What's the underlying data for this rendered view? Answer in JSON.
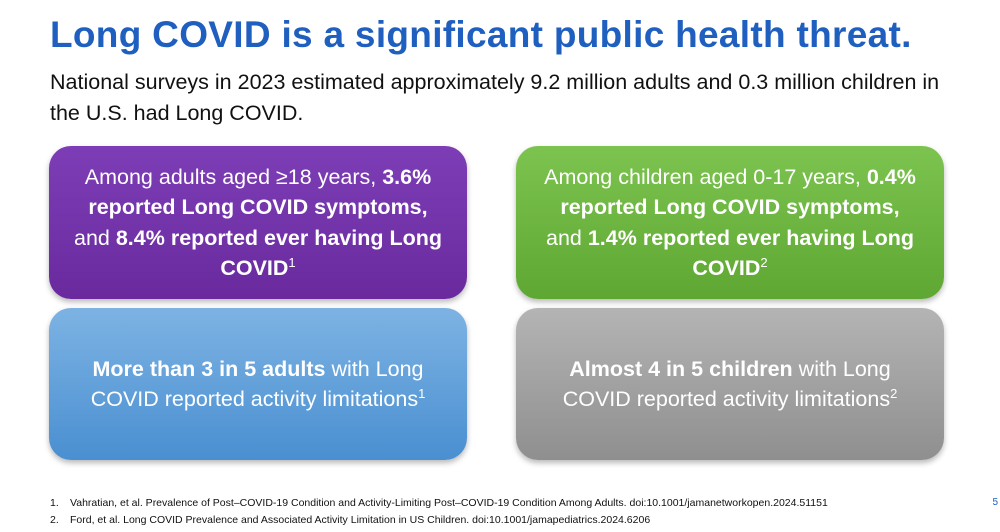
{
  "title": "Long COVID is a significant public health threat.",
  "subtitle": "National surveys in 2023 estimated approximately 9.2 million adults and 0.3 million children in the U.S. had Long COVID.",
  "cards": {
    "adults_prevalence": {
      "t1": "Among adults aged ≥18 years, ",
      "b1": "3.6% reported Long COVID symptoms,",
      "t2": " and ",
      "b2": "8.4% reported ever having Long COVID",
      "sup": "1",
      "color": "#6a2a9e"
    },
    "children_prevalence": {
      "t1": "Among children aged 0-17 years, ",
      "b1": "0.4% reported Long COVID symptoms,",
      "t2": " and ",
      "b2": "1.4% reported ever having Long COVID",
      "sup": "2",
      "color": "#5fa733"
    },
    "adults_limitations": {
      "b1": "More than 3 in 5 adults",
      "t1": " with Long COVID reported activity limitations",
      "sup": "1",
      "color": "#4a8fd1"
    },
    "children_limitations": {
      "b1": "Almost 4 in 5 children",
      "t1": " with Long COVID reported activity limitations",
      "sup": "2",
      "color": "#8f8f8f"
    }
  },
  "references": [
    {
      "num": "1.",
      "text": "Vahratian, et al. Prevalence of Post–COVID-19 Condition and Activity-Limiting Post–COVID-19 Condition Among Adults. doi:10.1001/jamanetworkopen.2024.51151"
    },
    {
      "num": "2.",
      "text": "Ford, et al. Long COVID Prevalence and Associated Activity Limitation in US Children. doi:10.1001/jamapediatrics.2024.6206"
    }
  ],
  "page_number": "5"
}
